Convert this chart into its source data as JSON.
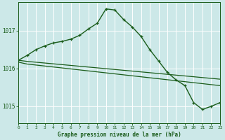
{
  "title": "Graphe pression niveau de la mer (hPa)",
  "bg_color": "#cce8e8",
  "grid_color": "#ffffff",
  "line_color": "#1a5c1a",
  "x_ticks": [
    0,
    1,
    2,
    3,
    4,
    5,
    6,
    7,
    8,
    9,
    10,
    11,
    12,
    13,
    14,
    15,
    16,
    17,
    18,
    19,
    20,
    21,
    22,
    23
  ],
  "y_ticks": [
    1015,
    1016,
    1017
  ],
  "ylim": [
    1014.55,
    1017.75
  ],
  "xlim": [
    0,
    23
  ],
  "series": [
    {
      "x": [
        0,
        1,
        23
      ],
      "y": [
        1016.22,
        1016.19,
        1015.72
      ],
      "marker": null,
      "lw": 0.9
    },
    {
      "x": [
        0,
        1,
        23
      ],
      "y": [
        1016.17,
        1016.12,
        1015.55
      ],
      "marker": null,
      "lw": 0.9
    },
    {
      "x": [
        0,
        1,
        2,
        3,
        4,
        5,
        6,
        7,
        8,
        9,
        10,
        11,
        12,
        13,
        14,
        15,
        16,
        17,
        18,
        19,
        20,
        21,
        22,
        23
      ],
      "y": [
        1016.22,
        1016.35,
        1016.5,
        1016.6,
        1016.68,
        1016.72,
        1016.78,
        1016.88,
        1017.05,
        1017.2,
        1017.58,
        1017.55,
        1017.3,
        1017.1,
        1016.85,
        1016.5,
        1016.2,
        1015.9,
        1015.7,
        1015.55,
        1015.1,
        1014.92,
        1015.0,
        1015.1
      ],
      "marker": "+",
      "lw": 1.0
    }
  ]
}
